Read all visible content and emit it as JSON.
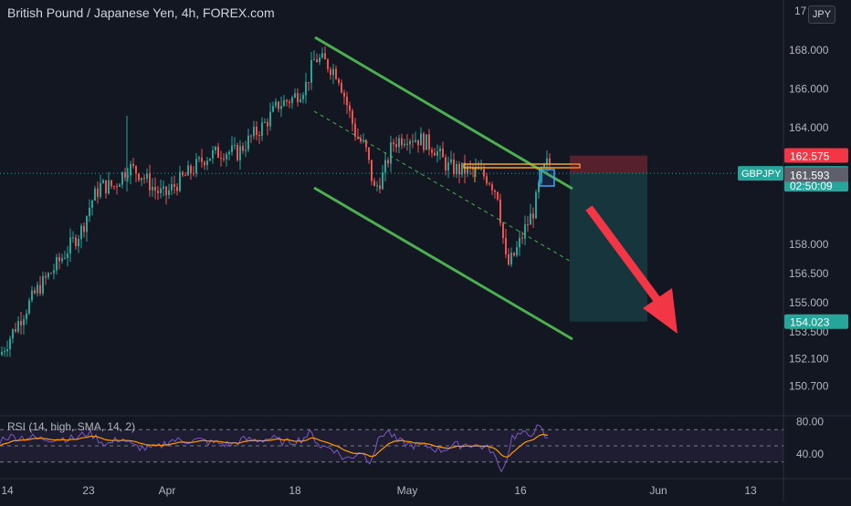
{
  "header": {
    "title": "British Pound / Japanese Yen, 4h, FOREX.com",
    "currency_badge": "JPY"
  },
  "colors": {
    "background": "#131722",
    "up_candle": "#26a69a",
    "down_candle": "#ef5350",
    "channel": "#4caf50",
    "resistance": "#f5a623",
    "rsi_line": "#7e57c2",
    "rsi_ma": "#ff9800",
    "arrow": "#f23645",
    "price_badge": "#26a69a",
    "stop_badge": "#f23645"
  },
  "chart_data": {
    "type": "candlestick",
    "symbol": "GBPJPY",
    "ylim": [
      149.6,
      169.8
    ],
    "y_ticks": [
      "168.000",
      "166.000",
      "164.000",
      "158.000",
      "156.500",
      "155.000",
      "153.500",
      "152.100",
      "150.700"
    ],
    "x_ticks": [
      "14",
      "23",
      "Apr",
      "18",
      "May",
      "16",
      "Jun",
      "13"
    ],
    "close_path": [
      [
        0,
        152.3
      ],
      [
        20,
        154.0
      ],
      [
        40,
        155.6
      ],
      [
        60,
        156.8
      ],
      [
        75,
        157.8
      ],
      [
        90,
        158.8
      ],
      [
        100,
        160.2
      ],
      [
        110,
        161.0
      ],
      [
        125,
        161.0
      ],
      [
        140,
        162.0
      ],
      [
        155,
        161.6
      ],
      [
        170,
        160.8
      ],
      [
        180,
        160.5
      ],
      [
        195,
        161.2
      ],
      [
        210,
        161.8
      ],
      [
        225,
        162.5
      ],
      [
        245,
        162.8
      ],
      [
        260,
        162.7
      ],
      [
        275,
        163.5
      ],
      [
        290,
        164.2
      ],
      [
        305,
        165.2
      ],
      [
        320,
        165.5
      ],
      [
        335,
        166.2
      ],
      [
        345,
        167.6
      ],
      [
        355,
        167.4
      ],
      [
        370,
        166.8
      ],
      [
        380,
        165.2
      ],
      [
        390,
        163.6
      ],
      [
        400,
        163.0
      ],
      [
        410,
        160.8
      ],
      [
        420,
        161.6
      ],
      [
        430,
        163.2
      ],
      [
        445,
        163.6
      ],
      [
        460,
        163.4
      ],
      [
        475,
        163.0
      ],
      [
        490,
        162.0
      ],
      [
        505,
        161.8
      ],
      [
        520,
        161.8
      ],
      [
        535,
        161.4
      ],
      [
        545,
        160.6
      ],
      [
        555,
        156.8
      ],
      [
        565,
        157.6
      ],
      [
        575,
        158.8
      ],
      [
        585,
        159.8
      ],
      [
        593,
        161.6
      ],
      [
        600,
        162.2
      ]
    ],
    "channel_upper": {
      "start": [
        "2022-04-20",
        168.8
      ],
      "end": [
        "2022-05-21",
        161.3
      ]
    },
    "channel_lower": {
      "start": [
        "2022-04-20",
        161.8
      ],
      "end": [
        "2022-05-21",
        154.0
      ]
    },
    "channel_mid": {
      "start": [
        "2022-04-20",
        165.3
      ],
      "end": [
        "2022-05-21",
        157.6
      ]
    },
    "resistance_level": 162.575,
    "current_price": "161.659",
    "countdown": "02:50:09",
    "bid_price": "161.593",
    "stop_loss": "162.575",
    "take_profit": "154.023",
    "rsi": {
      "label": "RSI (14, high, SMA, 14, 2)",
      "ticks": [
        "80.00",
        "40.00"
      ],
      "levels": [
        70,
        50,
        30
      ],
      "ylim": [
        15,
        85
      ]
    }
  }
}
